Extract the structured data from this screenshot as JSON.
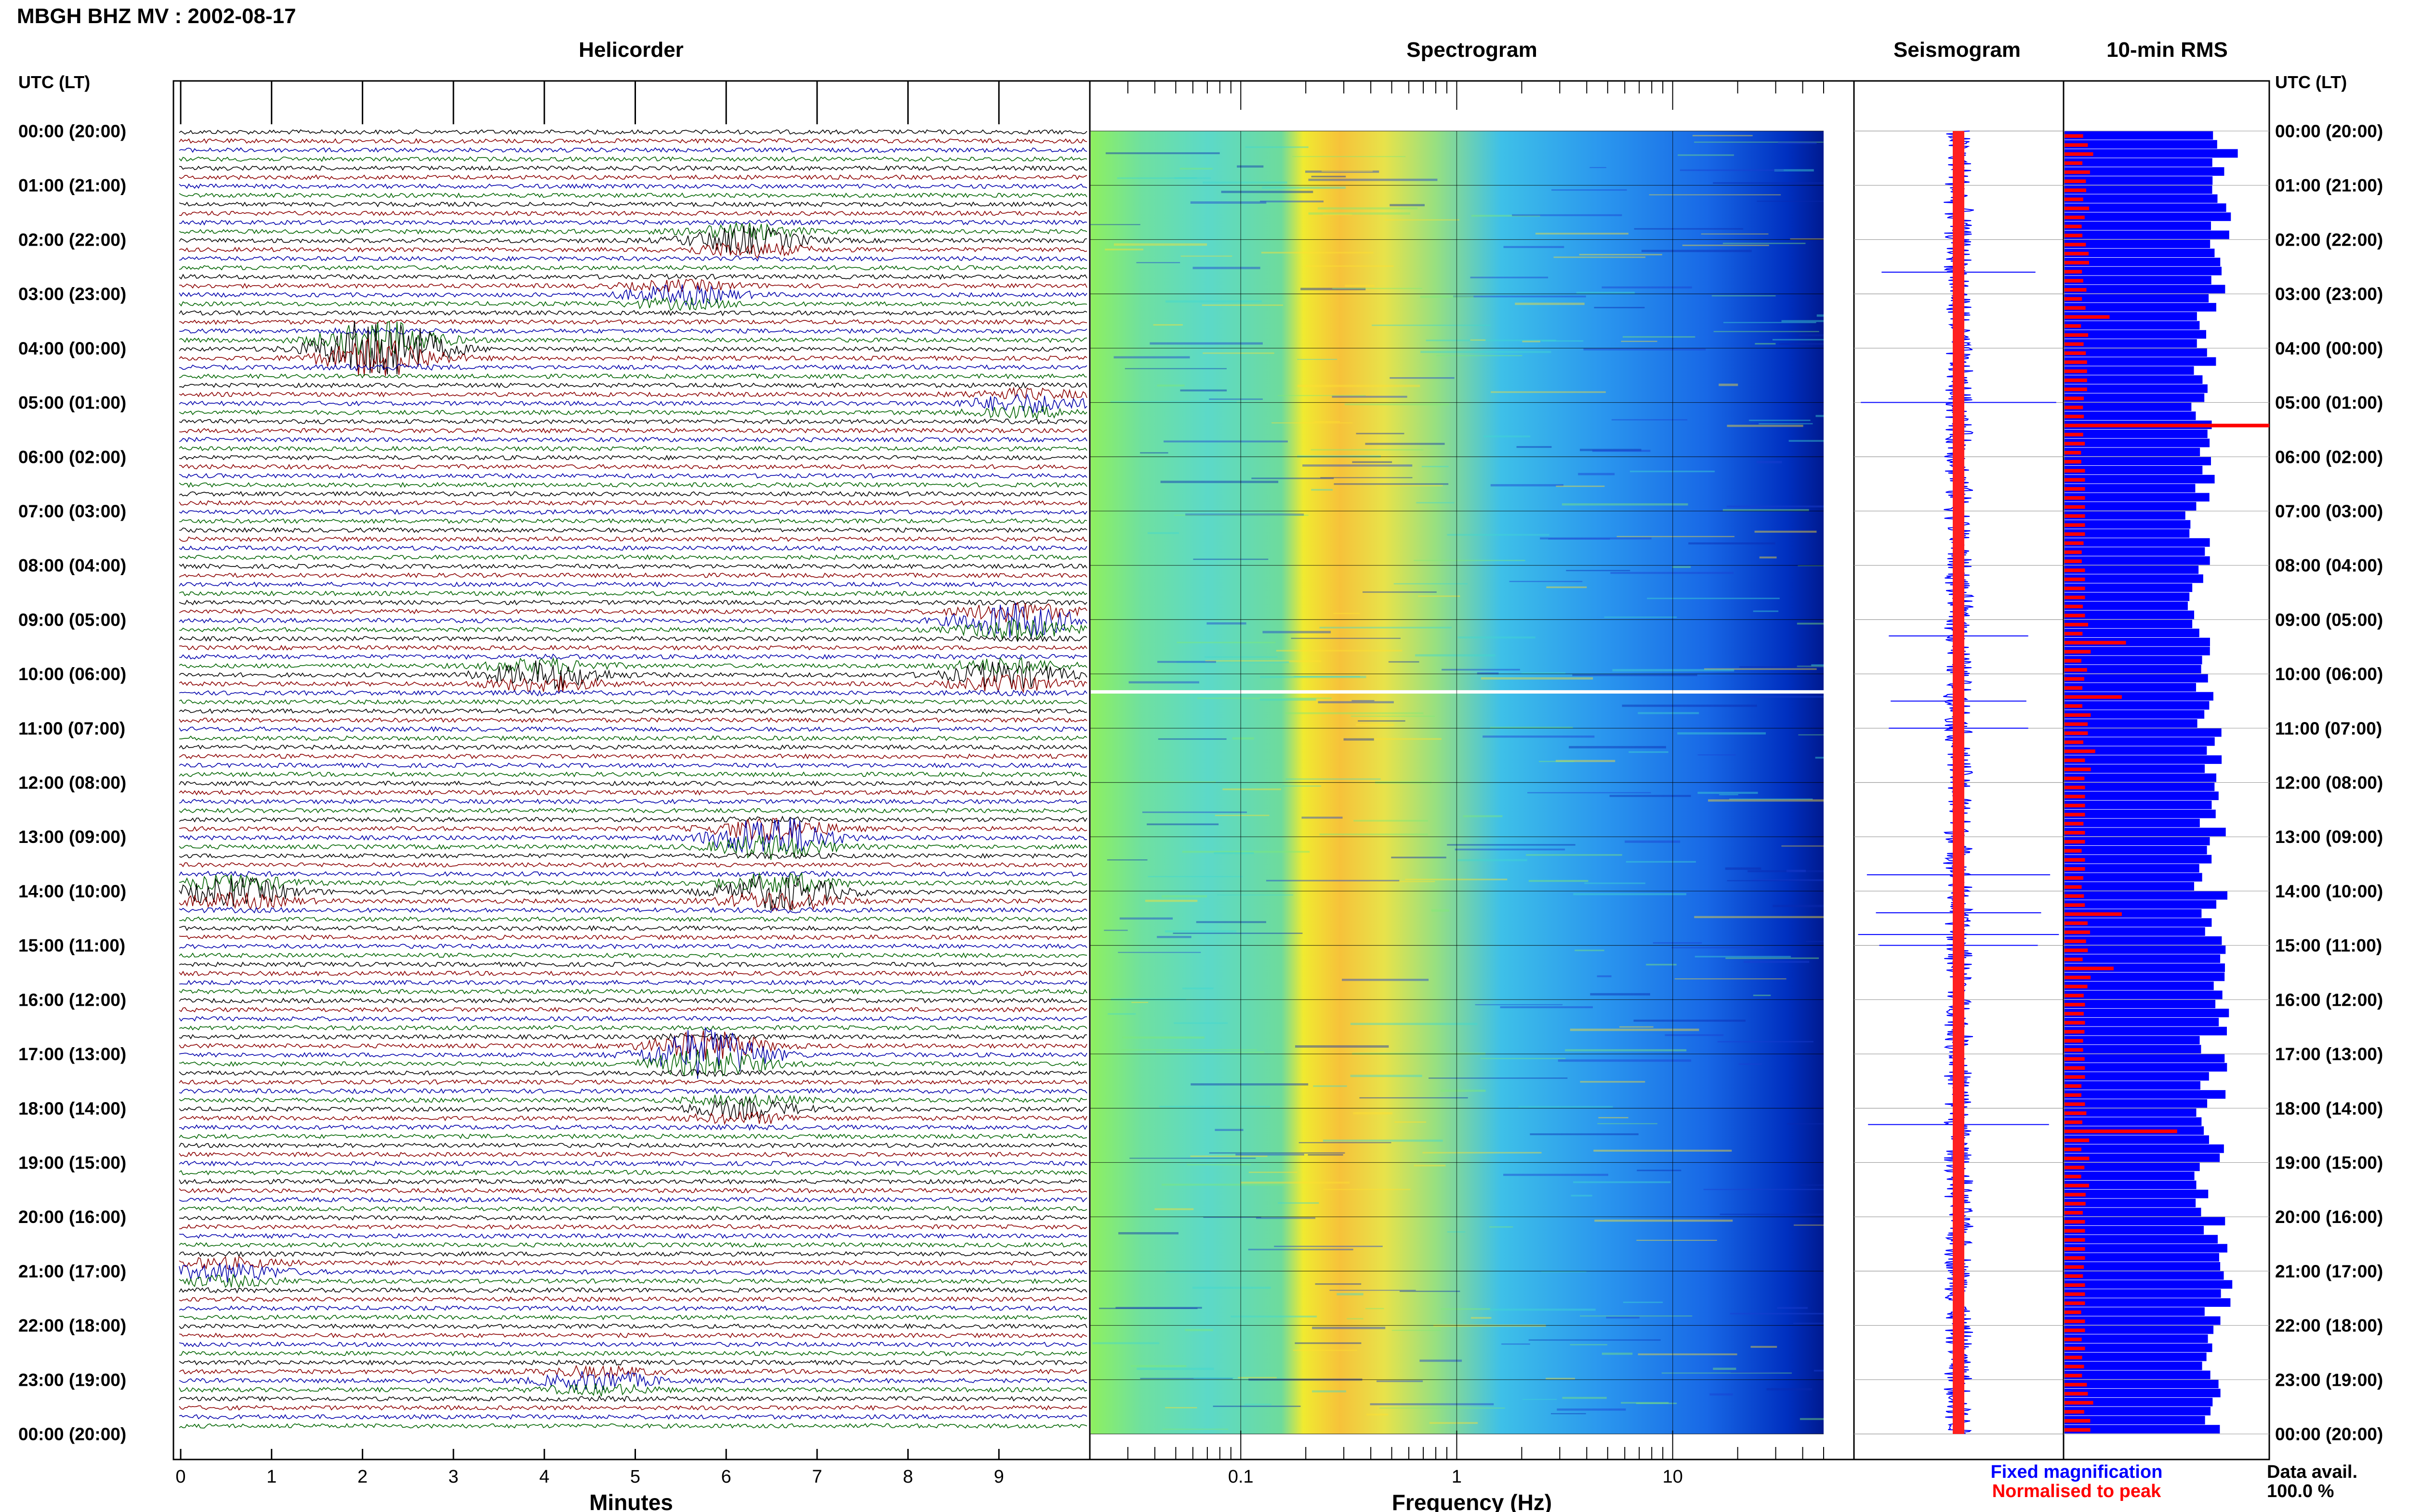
{
  "header": {
    "station_title": "MBGH BHZ MV : 2002-08-17"
  },
  "panels": {
    "helicorder": "Helicorder",
    "spectrogram": "Spectrogram",
    "seismogram": "Seismogram",
    "rms": "10-min RMS"
  },
  "time_axis": {
    "left_header": "UTC (LT)",
    "right_header": "UTC (LT)",
    "labels": [
      "00:00 (20:00)",
      "01:00 (21:00)",
      "02:00 (22:00)",
      "03:00 (23:00)",
      "04:00 (00:00)",
      "05:00 (01:00)",
      "06:00 (02:00)",
      "07:00 (03:00)",
      "08:00 (04:00)",
      "09:00 (05:00)",
      "10:00 (06:00)",
      "11:00 (07:00)",
      "12:00 (08:00)",
      "13:00 (09:00)",
      "14:00 (10:00)",
      "15:00 (11:00)",
      "16:00 (12:00)",
      "17:00 (13:00)",
      "18:00 (14:00)",
      "19:00 (15:00)",
      "20:00 (16:00)",
      "21:00 (17:00)",
      "22:00 (18:00)",
      "23:00 (19:00)",
      "00:00 (20:00)"
    ]
  },
  "footer": {
    "fixed_magnification": "Fixed magnification",
    "normalised_to_peak": "Normalised to peak",
    "data_avail_label": "Data avail.",
    "data_avail_value": "100.0 %"
  },
  "colors": {
    "trace_black": "#000000",
    "trace_red": "#8b0000",
    "trace_blue": "#0000aa",
    "trace_green": "#006400",
    "rms_fixed": "#0000ff",
    "rms_normalised": "#ff0000",
    "legend_blue": "#0000ff",
    "legend_red": "#ff0000"
  },
  "chart_data": [
    {
      "type": "line",
      "name": "helicorder",
      "title": "Helicorder",
      "xlabel": "Minutes",
      "xlim": [
        0,
        10
      ],
      "x_ticks": [
        0,
        1,
        2,
        3,
        4,
        5,
        6,
        7,
        8,
        9
      ],
      "lines_per_hour": 6,
      "events": [
        {
          "hour": 2,
          "minute": 6.2,
          "amplitude": 3
        },
        {
          "hour": 3,
          "minute": 5.5,
          "amplitude": 2
        },
        {
          "hour": 4,
          "minute": 2.2,
          "amplitude": 8
        },
        {
          "hour": 5,
          "minute": 9.3,
          "amplitude": 2
        },
        {
          "hour": 9,
          "minute": 9.2,
          "amplitude": 4
        },
        {
          "hour": 10,
          "minute": 4.0,
          "amplitude": 3
        },
        {
          "hour": 10,
          "minute": 9.1,
          "amplitude": 3
        },
        {
          "hour": 13,
          "minute": 6.5,
          "amplitude": 5
        },
        {
          "hour": 14,
          "minute": 0.6,
          "amplitude": 3
        },
        {
          "hour": 14,
          "minute": 6.6,
          "amplitude": 4
        },
        {
          "hour": 17,
          "minute": 5.8,
          "amplitude": 6
        },
        {
          "hour": 18,
          "minute": 6.2,
          "amplitude": 2
        },
        {
          "hour": 21,
          "minute": 0.5,
          "amplitude": 2
        },
        {
          "hour": 23,
          "minute": 4.6,
          "amplitude": 2
        }
      ]
    },
    {
      "type": "heatmap",
      "name": "spectrogram",
      "title": "Spectrogram",
      "xlabel": "Frequency (Hz)",
      "x_scale": "log",
      "xlim": [
        0.02,
        50
      ],
      "x_tick_labels": [
        "0.1",
        "1",
        "10"
      ],
      "x_ticks": [
        0.1,
        1,
        10
      ],
      "dominant_band_hz": [
        0.22,
        1.0
      ],
      "data_gap_hour": 10.3
    },
    {
      "type": "line",
      "name": "seismogram",
      "title": "Seismogram",
      "spikes_hour": [
        2.6,
        5.0,
        9.3,
        10.5,
        11.0,
        13.7,
        14.4,
        14.8,
        15.0,
        18.3
      ]
    },
    {
      "type": "bar",
      "name": "rms",
      "title": "10-min RMS",
      "series": [
        {
          "name": "Fixed magnification",
          "values": [
            0.82,
            0.78,
            0.74,
            0.72,
            0.7,
            0.69,
            0.68,
            0.67,
            0.66,
            0.7,
            0.72,
            0.74,
            0.73,
            0.71,
            0.74,
            0.76,
            0.75,
            0.74,
            0.73,
            0.72,
            0.75,
            0.77,
            0.74,
            0.72
          ]
        },
        {
          "name": "Normalised to peak",
          "values": [
            0.14,
            0.12,
            0.12,
            0.22,
            0.11,
            1.0,
            0.1,
            0.1,
            0.1,
            0.3,
            0.28,
            0.15,
            0.1,
            0.1,
            0.28,
            0.24,
            0.1,
            0.1,
            0.55,
            0.12,
            0.1,
            0.1,
            0.1,
            0.14
          ]
        }
      ]
    }
  ]
}
